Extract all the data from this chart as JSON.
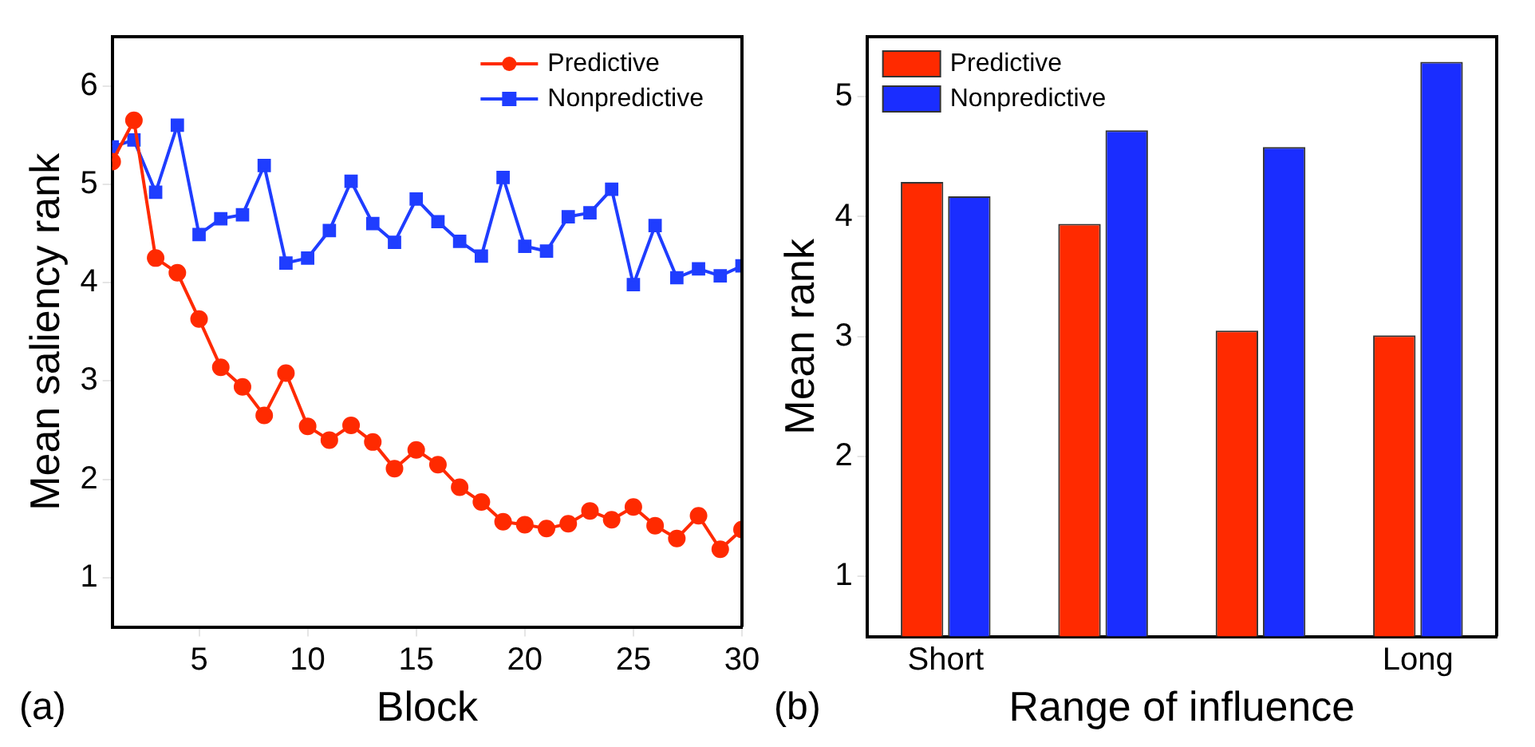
{
  "chart_data": [
    {
      "type": "line",
      "xlabel": "Block",
      "ylabel": "Mean saliency rank",
      "annotations": [
        "(a)"
      ],
      "x": [
        1,
        2,
        3,
        4,
        5,
        6,
        7,
        8,
        9,
        10,
        11,
        12,
        13,
        14,
        15,
        16,
        17,
        18,
        19,
        20,
        21,
        22,
        23,
        24,
        25,
        26,
        27,
        28,
        29,
        30
      ],
      "xlim": [
        1,
        30
      ],
      "xticks": [
        5,
        10,
        15,
        20,
        25,
        30
      ],
      "ylim": [
        0.5,
        6.5
      ],
      "yticks": [
        1,
        2,
        3,
        4,
        5,
        6
      ],
      "legend": "top right",
      "series": [
        {
          "name": "Predictive",
          "color": "#ff2a00",
          "marker": "circle",
          "values": [
            5.23,
            5.65,
            4.25,
            4.1,
            3.63,
            3.14,
            2.94,
            2.65,
            3.08,
            2.54,
            2.4,
            2.55,
            2.38,
            2.11,
            2.3,
            2.15,
            1.92,
            1.77,
            1.57,
            1.54,
            1.5,
            1.55,
            1.68,
            1.59,
            1.72,
            1.53,
            1.4,
            1.63,
            1.29,
            1.49
          ]
        },
        {
          "name": "Nonpredictive",
          "color": "#1f3dff",
          "marker": "square",
          "values": [
            5.38,
            5.45,
            4.92,
            5.6,
            4.49,
            4.65,
            4.69,
            5.19,
            4.2,
            4.25,
            4.53,
            5.03,
            4.6,
            4.41,
            4.85,
            4.62,
            4.42,
            4.27,
            5.07,
            4.37,
            4.32,
            4.67,
            4.71,
            4.95,
            3.98,
            4.58,
            4.05,
            4.14,
            4.07,
            4.17
          ]
        }
      ]
    },
    {
      "type": "bar",
      "xlabel": "Range of influence",
      "ylabel": "Mean rank",
      "annotations": [
        "(b)"
      ],
      "categories": [
        "Short",
        null,
        null,
        "Long"
      ],
      "ylim": [
        0.5,
        5.5
      ],
      "yticks": [
        1,
        2,
        3,
        4,
        5
      ],
      "legend": "top left",
      "series": [
        {
          "name": "Predictive",
          "color": "#ff2a00",
          "values": [
            4.29,
            3.94,
            3.05,
            3.01
          ]
        },
        {
          "name": "Nonpredictive",
          "color": "#1a2dff",
          "values": [
            4.17,
            4.72,
            4.58,
            5.29
          ]
        }
      ]
    }
  ]
}
